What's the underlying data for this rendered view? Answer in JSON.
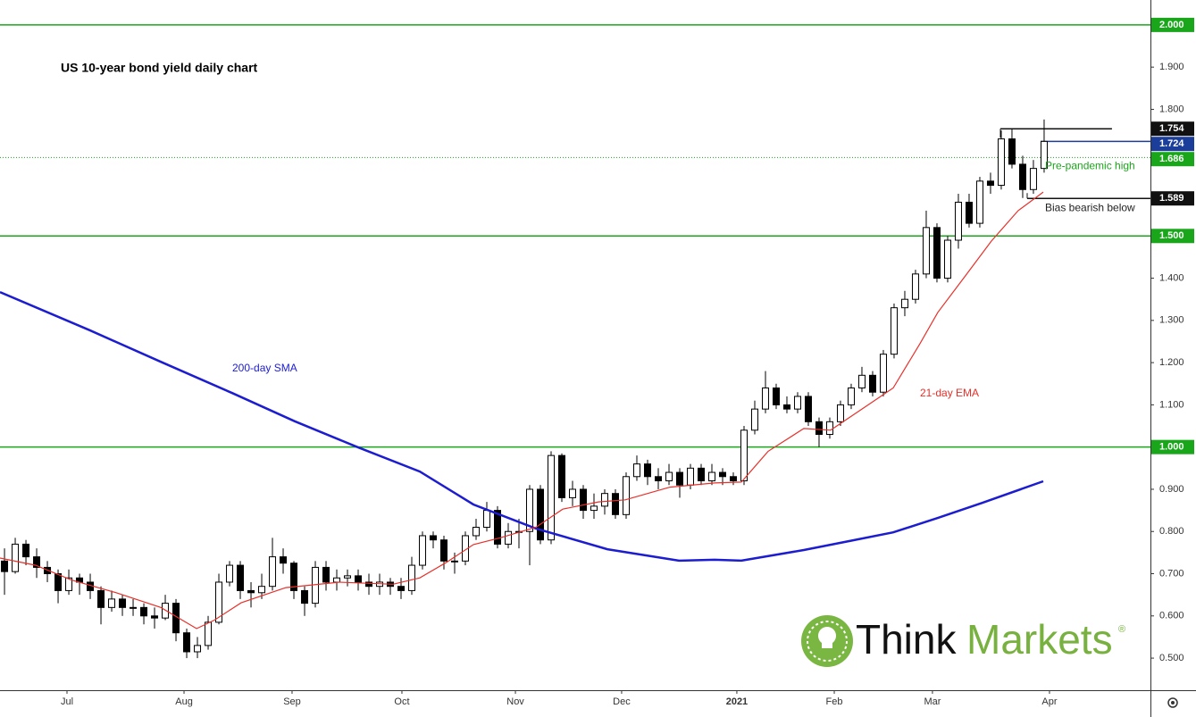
{
  "chart_data": {
    "type": "candlestick",
    "title": "US 10-year bond yield daily chart",
    "open": [
      0.73,
      0.705,
      0.77,
      0.74,
      0.715,
      0.7,
      0.66,
      0.69,
      0.68,
      0.66,
      0.62,
      0.64,
      0.62,
      0.62,
      0.6,
      0.595,
      0.63,
      0.56,
      0.515,
      0.53,
      0.585,
      0.68,
      0.72,
      0.66,
      0.655,
      0.67,
      0.74,
      0.725,
      0.66,
      0.63,
      0.715,
      0.68,
      0.69,
      0.695,
      0.68,
      0.67,
      0.68,
      0.67,
      0.66,
      0.72,
      0.79,
      0.78,
      0.73,
      0.73,
      0.79,
      0.81,
      0.85,
      0.77,
      0.8,
      0.8,
      0.9,
      0.78,
      0.98,
      0.88,
      0.9,
      0.85,
      0.86,
      0.89,
      0.84,
      0.93,
      0.96,
      0.93,
      0.92,
      0.94,
      0.91,
      0.95,
      0.92,
      0.94,
      0.93,
      0.92,
      1.04,
      1.09,
      1.14,
      1.1,
      1.09,
      1.12,
      1.06,
      1.03,
      1.06,
      1.1,
      1.14,
      1.17,
      1.13,
      1.22,
      1.33,
      1.35,
      1.41,
      1.52,
      1.4,
      1.49,
      1.58,
      1.53,
      1.63,
      1.62,
      1.73,
      1.67,
      1.61,
      1.66
    ],
    "high": [
      0.76,
      0.785,
      0.78,
      0.76,
      0.73,
      0.71,
      0.71,
      0.7,
      0.7,
      0.67,
      0.66,
      0.65,
      0.64,
      0.63,
      0.62,
      0.65,
      0.64,
      0.57,
      0.55,
      0.6,
      0.7,
      0.73,
      0.73,
      0.68,
      0.7,
      0.785,
      0.76,
      0.73,
      0.67,
      0.73,
      0.73,
      0.71,
      0.71,
      0.71,
      0.7,
      0.7,
      0.69,
      0.69,
      0.74,
      0.8,
      0.8,
      0.79,
      0.75,
      0.8,
      0.83,
      0.87,
      0.86,
      0.82,
      0.83,
      0.91,
      0.91,
      0.99,
      0.985,
      0.92,
      0.91,
      0.89,
      0.9,
      0.9,
      0.94,
      0.98,
      0.97,
      0.95,
      0.96,
      0.95,
      0.96,
      0.96,
      0.96,
      0.95,
      0.94,
      1.05,
      1.11,
      1.18,
      1.15,
      1.12,
      1.13,
      1.13,
      1.07,
      1.07,
      1.11,
      1.15,
      1.19,
      1.18,
      1.23,
      1.34,
      1.37,
      1.42,
      1.56,
      1.53,
      1.5,
      1.6,
      1.6,
      1.64,
      1.65,
      1.75,
      1.754,
      1.69,
      1.68,
      1.776
    ],
    "low": [
      0.65,
      0.7,
      0.72,
      0.69,
      0.68,
      0.63,
      0.65,
      0.65,
      0.64,
      0.58,
      0.61,
      0.6,
      0.6,
      0.58,
      0.57,
      0.59,
      0.54,
      0.5,
      0.5,
      0.52,
      0.58,
      0.67,
      0.64,
      0.62,
      0.64,
      0.66,
      0.7,
      0.64,
      0.6,
      0.62,
      0.66,
      0.66,
      0.67,
      0.66,
      0.65,
      0.65,
      0.65,
      0.64,
      0.65,
      0.71,
      0.76,
      0.71,
      0.7,
      0.72,
      0.78,
      0.8,
      0.76,
      0.76,
      0.76,
      0.72,
      0.77,
      0.77,
      0.87,
      0.86,
      0.83,
      0.83,
      0.84,
      0.83,
      0.83,
      0.92,
      0.91,
      0.9,
      0.91,
      0.88,
      0.9,
      0.91,
      0.91,
      0.91,
      0.91,
      0.91,
      1.03,
      1.08,
      1.09,
      1.08,
      1.08,
      1.05,
      1.0,
      1.02,
      1.05,
      1.09,
      1.13,
      1.12,
      1.12,
      1.21,
      1.31,
      1.34,
      1.4,
      1.39,
      1.39,
      1.47,
      1.52,
      1.52,
      1.6,
      1.61,
      1.66,
      1.59,
      1.6,
      1.65
    ],
    "close": [
      0.705,
      0.77,
      0.74,
      0.715,
      0.7,
      0.66,
      0.69,
      0.68,
      0.66,
      0.62,
      0.64,
      0.62,
      0.62,
      0.6,
      0.595,
      0.63,
      0.56,
      0.515,
      0.53,
      0.585,
      0.68,
      0.72,
      0.66,
      0.655,
      0.67,
      0.74,
      0.725,
      0.66,
      0.63,
      0.715,
      0.68,
      0.69,
      0.695,
      0.68,
      0.67,
      0.68,
      0.67,
      0.66,
      0.72,
      0.79,
      0.78,
      0.73,
      0.73,
      0.79,
      0.81,
      0.85,
      0.77,
      0.8,
      0.8,
      0.9,
      0.78,
      0.98,
      0.88,
      0.9,
      0.85,
      0.86,
      0.89,
      0.84,
      0.93,
      0.96,
      0.93,
      0.92,
      0.94,
      0.91,
      0.95,
      0.92,
      0.94,
      0.93,
      0.92,
      1.04,
      1.09,
      1.14,
      1.1,
      1.09,
      1.12,
      1.06,
      1.03,
      1.06,
      1.1,
      1.14,
      1.17,
      1.13,
      1.22,
      1.33,
      1.35,
      1.41,
      1.52,
      1.4,
      1.49,
      1.58,
      1.53,
      1.63,
      1.62,
      1.73,
      1.67,
      1.61,
      1.66,
      1.724
    ],
    "series": [
      {
        "name": "200-day SMA",
        "color": "#1c1cd0",
        "x": [
          -0.42,
          7.92,
          14.58,
          21.25,
          27.08,
          32.92,
          38.75,
          43.75,
          49.58,
          56.25,
          62.92,
          66.25,
          68.75,
          74.58,
          78.75,
          82.92,
          87.08,
          91.25,
          96.92
        ],
        "values": [
          1.367,
          1.277,
          1.202,
          1.128,
          1.061,
          1.0,
          0.942,
          0.864,
          0.807,
          0.758,
          0.731,
          0.733,
          0.731,
          0.756,
          0.777,
          0.798,
          0.832,
          0.868,
          0.919
        ]
      },
      {
        "name": "21-day EMA",
        "color": "#e8302a",
        "x": [
          -0.42,
          2.92,
          6.25,
          10.42,
          14.58,
          17.92,
          19.58,
          22.08,
          26.25,
          31.25,
          36.25,
          38.75,
          41.25,
          43.75,
          46.25,
          49.58,
          52.08,
          55.42,
          57.92,
          62.08,
          66.25,
          68.75,
          71.25,
          74.58,
          77.08,
          80.42,
          82.92,
          85.42,
          87.08,
          89.58,
          92.08,
          94.58,
          96.92
        ],
        "values": [
          0.737,
          0.72,
          0.685,
          0.655,
          0.62,
          0.57,
          0.59,
          0.631,
          0.667,
          0.68,
          0.675,
          0.69,
          0.727,
          0.769,
          0.785,
          0.81,
          0.853,
          0.87,
          0.875,
          0.905,
          0.915,
          0.917,
          0.99,
          1.044,
          1.04,
          1.097,
          1.14,
          1.245,
          1.319,
          1.403,
          1.488,
          1.56,
          1.604
        ]
      }
    ],
    "levels": [
      {
        "value": 2.0,
        "label": "2.000",
        "color": "#1aa61a"
      },
      {
        "value": 1.754,
        "label": "1.754",
        "color": "#111111",
        "xrange": [
          92.92,
          103.33
        ]
      },
      {
        "value": 1.724,
        "label": "1.724",
        "color": "#1b3e9a",
        "xrange": [
          96.67,
          106.92
        ]
      },
      {
        "value": 1.686,
        "label": "1.686",
        "color": "#1aa61a",
        "dotted": true,
        "note": "Pre-pandemic high"
      },
      {
        "value": 1.589,
        "label": "1.589",
        "color": "#111111",
        "xrange": [
          95.42,
          106.92
        ],
        "note": "Bias bearish below"
      },
      {
        "value": 1.5,
        "label": "1.500",
        "color": "#1aa61a"
      },
      {
        "value": 1.0,
        "label": "1.000",
        "color": "#1aa61a"
      }
    ],
    "xlim": [
      -0.42,
      106.92
    ],
    "ylim": [
      0.424,
      2.059
    ],
    "xticks": [
      {
        "value": 5.83,
        "label": "Jul"
      },
      {
        "value": 16.75,
        "label": "Aug"
      },
      {
        "value": 26.83,
        "label": "Sep"
      },
      {
        "value": 37.08,
        "label": "Oct"
      },
      {
        "value": 47.67,
        "label": "Nov"
      },
      {
        "value": 57.58,
        "label": "Dec"
      },
      {
        "value": 68.33,
        "label": "2021"
      },
      {
        "value": 77.42,
        "label": "Feb"
      },
      {
        "value": 86.58,
        "label": "Mar"
      },
      {
        "value": 97.5,
        "label": "Apr"
      }
    ],
    "yticks": [
      {
        "value": 0.5,
        "label": "0.500"
      },
      {
        "value": 0.6,
        "label": "0.600"
      },
      {
        "value": 0.7,
        "label": "0.700"
      },
      {
        "value": 0.8,
        "label": "0.800"
      },
      {
        "value": 0.9,
        "label": "0.900"
      },
      {
        "value": 1.1,
        "label": "1.100"
      },
      {
        "value": 1.2,
        "label": "1.200"
      },
      {
        "value": 1.3,
        "label": "1.300"
      },
      {
        "value": 1.4,
        "label": "1.400"
      },
      {
        "value": 1.8,
        "label": "1.800"
      },
      {
        "value": 1.9,
        "label": "1.900"
      }
    ],
    "up_color": "#ffffff",
    "down_color": "#000000",
    "watermark": {
      "think": "Think",
      "markets": "Markets",
      "mark": "®"
    }
  }
}
